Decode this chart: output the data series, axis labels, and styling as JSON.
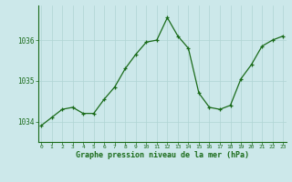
{
  "x": [
    0,
    1,
    2,
    3,
    4,
    5,
    6,
    7,
    8,
    9,
    10,
    11,
    12,
    13,
    14,
    15,
    16,
    17,
    18,
    19,
    20,
    21,
    22,
    23
  ],
  "y": [
    1033.9,
    1034.1,
    1034.3,
    1034.35,
    1034.2,
    1034.2,
    1034.55,
    1034.85,
    1035.3,
    1035.65,
    1035.95,
    1036.0,
    1036.55,
    1036.1,
    1035.8,
    1034.7,
    1034.35,
    1034.3,
    1034.4,
    1035.05,
    1035.4,
    1035.85,
    1036.0,
    1036.1
  ],
  "line_color": "#1a6b1a",
  "marker": "+",
  "bg_color": "#cce8ea",
  "grid_color": "#b0d4d4",
  "axis_color": "#1a6b1a",
  "tick_color": "#1a6b1a",
  "label_color": "#1a6b1a",
  "xlabel": "Graphe pression niveau de la mer (hPa)",
  "ylim": [
    1033.5,
    1036.85
  ],
  "yticks": [
    1034,
    1035,
    1036
  ],
  "xticks": [
    0,
    1,
    2,
    3,
    4,
    5,
    6,
    7,
    8,
    9,
    10,
    11,
    12,
    13,
    14,
    15,
    16,
    17,
    18,
    19,
    20,
    21,
    22,
    23
  ],
  "xlim": [
    -0.3,
    23.3
  ]
}
